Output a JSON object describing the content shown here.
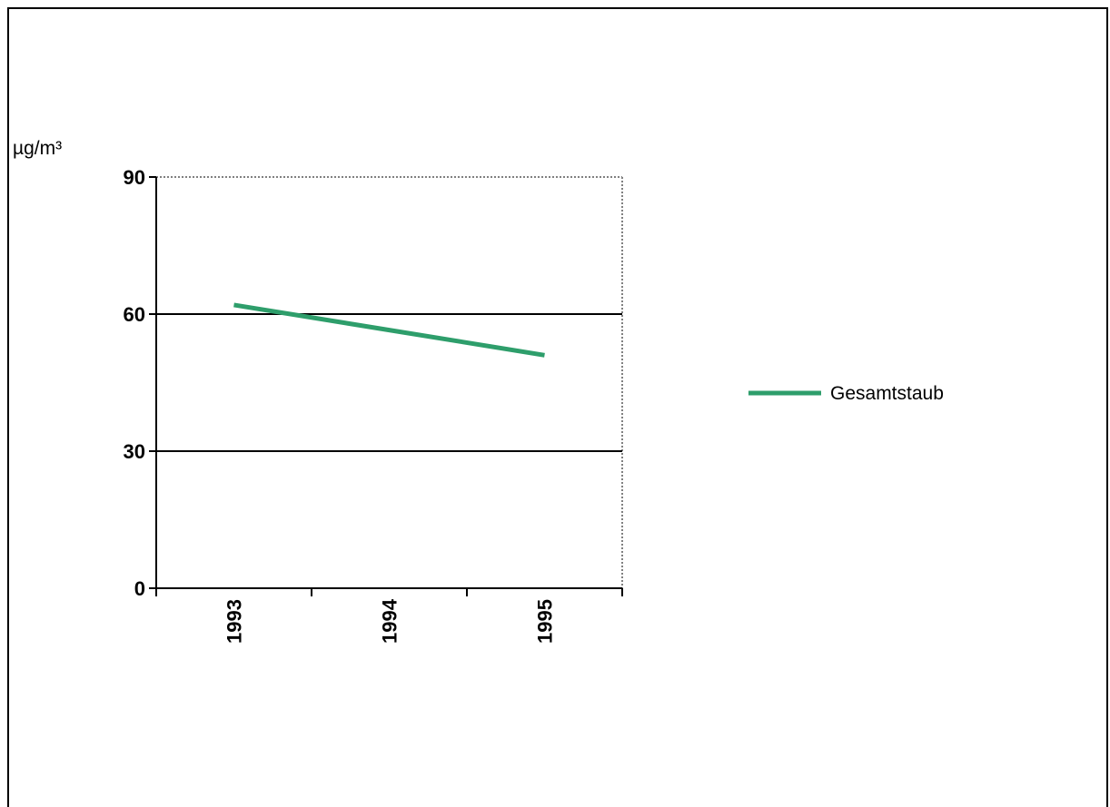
{
  "chart_data": {
    "type": "line",
    "title": "",
    "xlabel": "",
    "ylabel": "µg/m³",
    "categories": [
      "1993",
      "1994",
      "1995"
    ],
    "series": [
      {
        "name": "Gesamtstaub",
        "values": [
          62,
          56.5,
          51
        ],
        "color": "#2e9e6b"
      }
    ],
    "ylim": [
      0,
      90
    ],
    "yticks": [
      0,
      30,
      60,
      90
    ],
    "ytick_labels": [
      "0",
      "30",
      "60",
      "90"
    ],
    "grid": true,
    "legend_position": "right",
    "x_label_rotation": "vertical"
  }
}
